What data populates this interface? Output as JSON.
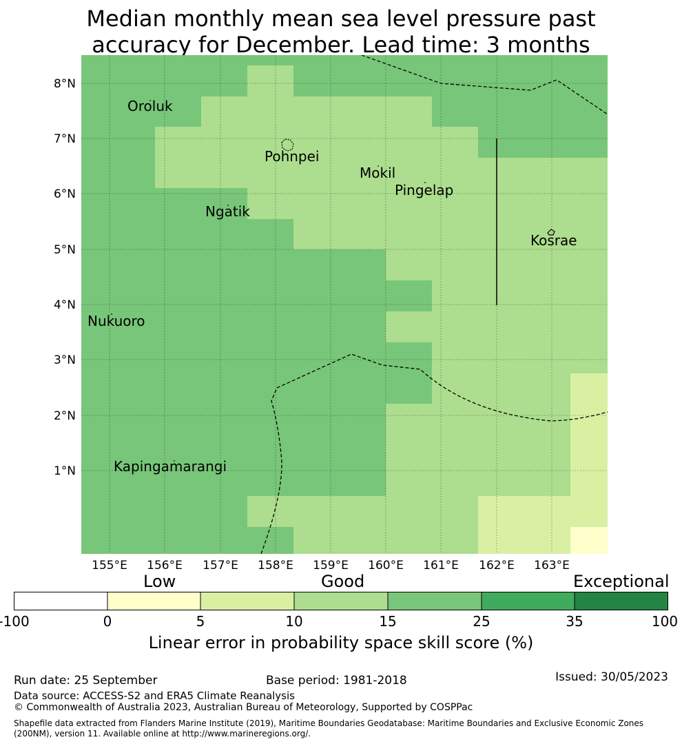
{
  "title_line1": "Median monthly mean sea level pressure past",
  "title_line2": "accuracy for December. Lead time: 3 months",
  "axes": {
    "x_ticks": [
      "155°E",
      "156°E",
      "157°E",
      "158°E",
      "159°E",
      "160°E",
      "161°E",
      "162°E",
      "163°E"
    ],
    "y_ticks": [
      "8°N",
      "7°N",
      "6°N",
      "5°N",
      "4°N",
      "3°N",
      "2°N",
      "1°N"
    ]
  },
  "places": [
    "Oroluk",
    "Pohnpei",
    "Mokil",
    "Pingelap",
    "Ngatik",
    "Kosrae",
    "Nukuoro",
    "Kapingamarangi"
  ],
  "colors": {
    "c0": "#ffffff",
    "c1": "#ffffcc",
    "c2": "#d9f0a3",
    "c3": "#addd8e",
    "c4": "#78c679",
    "c5": "#41ab5d",
    "c6": "#238443"
  },
  "legend": {
    "level_low": "Low",
    "level_good": "Good",
    "level_exceptional": "Exceptional",
    "ticks": [
      "-100",
      "0",
      "5",
      "10",
      "15",
      "25",
      "35",
      "100"
    ],
    "title": "Linear error in probability space skill score (%)"
  },
  "footer": {
    "run_date": "Run date: 25 September",
    "base_period": "Base period: 1981-2018",
    "issued": "Issued: 30/05/2023",
    "data_source": "Data source: ACCESS-S2 and ERA5 Climate Reanalysis",
    "copyright": "© Commonwealth of Australia 2023, Australian Bureau of Meteorology, Supported by COSPPac",
    "shapefile": "Shapefile data extracted from Flanders Marine Institute (2019), Maritime Boundaries Geodatabase: Maritime Boundaries and Exclusive Economic Zones (200NM), version 11. Available online at http://www.marineregions.org/."
  }
}
